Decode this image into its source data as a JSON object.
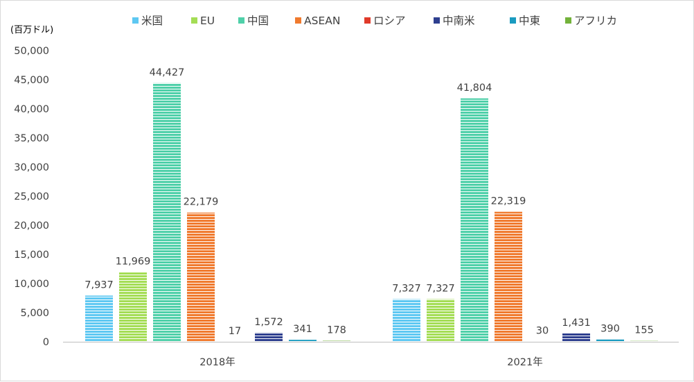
{
  "chart_data": {
    "type": "bar",
    "unit_label": "(百万ドル)",
    "categories": [
      "2018年",
      "2021年"
    ],
    "series": [
      {
        "name": "米国",
        "color": "#5ec8f2",
        "values": [
          7937,
          7327
        ],
        "labels": [
          "7,937",
          "7,327"
        ]
      },
      {
        "name": "EU",
        "color": "#a4dd55",
        "values": [
          11969,
          7327
        ],
        "labels": [
          "11,969",
          "7,327"
        ]
      },
      {
        "name": "中国",
        "color": "#4fd0a9",
        "values": [
          44427,
          41804
        ],
        "labels": [
          "44,427",
          "41,804"
        ]
      },
      {
        "name": "ASEAN",
        "color": "#f07a2e",
        "values": [
          22179,
          22319
        ],
        "labels": [
          "22,179",
          "22,319"
        ]
      },
      {
        "name": "ロシア",
        "color": "#e03a2a",
        "values": [
          17,
          30
        ],
        "labels": [
          "17",
          "30"
        ]
      },
      {
        "name": "中南米",
        "color": "#2e3f8f",
        "values": [
          1572,
          1431
        ],
        "labels": [
          "1,572",
          "1,431"
        ]
      },
      {
        "name": "中東",
        "color": "#1a9bc0",
        "values": [
          341,
          390
        ],
        "labels": [
          "341",
          "390"
        ]
      },
      {
        "name": "アフリカ",
        "color": "#73b23a",
        "values": [
          178,
          155
        ],
        "labels": [
          "178",
          "155"
        ]
      }
    ],
    "ylim": [
      0,
      50000
    ],
    "yticks": [
      0,
      5000,
      10000,
      15000,
      20000,
      25000,
      30000,
      35000,
      40000,
      45000,
      50000
    ],
    "ytick_labels": [
      "0",
      "5,000",
      "10,000",
      "15,000",
      "20,000",
      "25,000",
      "30,000",
      "35,000",
      "40,000",
      "45,000",
      "50,000"
    ],
    "legend_position": "top",
    "grid": false,
    "bar_pattern": "horizontal-stripes"
  }
}
